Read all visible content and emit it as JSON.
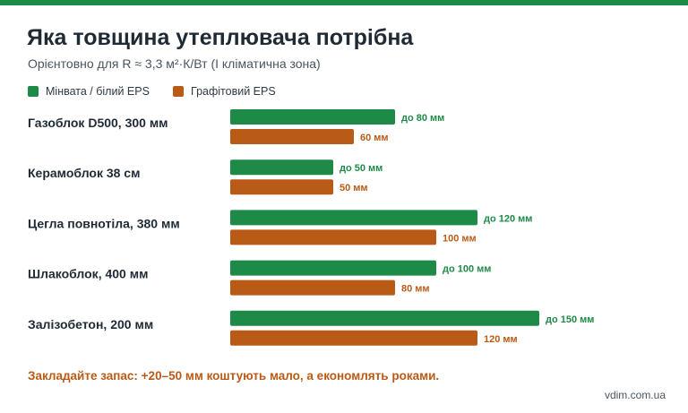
{
  "header": {
    "title": "Яка товщина утеплювача потрібна",
    "subtitle": "Орієнтовно для R ≈ 3,3 м²·К/Вт (І кліматична зона)"
  },
  "legend": [
    {
      "label": "Мінвата / білий EPS",
      "color": "#1e8a47"
    },
    {
      "label": "Графітовий EPS",
      "color": "#b95a16"
    }
  ],
  "chart_data": {
    "type": "bar",
    "orientation": "horizontal",
    "categories": [
      "Газоблок D500, 300 мм",
      "Керамоблок 38 см",
      "Цегла повнотіла, 380 мм",
      "Шлакоблок, 400 мм",
      "Залізобетон, 200 мм"
    ],
    "series": [
      {
        "name": "Мінвата / білий EPS",
        "color": "#1e8a47",
        "values": [
          80,
          50,
          120,
          100,
          150
        ],
        "labels": [
          "до 80 мм",
          "до 50 мм",
          "до 120 мм",
          "до 100 мм",
          "до 150 мм"
        ]
      },
      {
        "name": "Графітовий EPS",
        "color": "#b95a16",
        "values": [
          60,
          50,
          100,
          80,
          120
        ],
        "labels": [
          "60 мм",
          "50 мм",
          "100 мм",
          "80 мм",
          "120 мм"
        ]
      }
    ],
    "xlim": [
      0,
      150
    ],
    "grid": false,
    "legend_position": "top-left"
  },
  "footer": {
    "note": "Закладайте запас: +20–50 мм коштують мало, а економлять роками.",
    "site": "vdim.com.ua"
  }
}
